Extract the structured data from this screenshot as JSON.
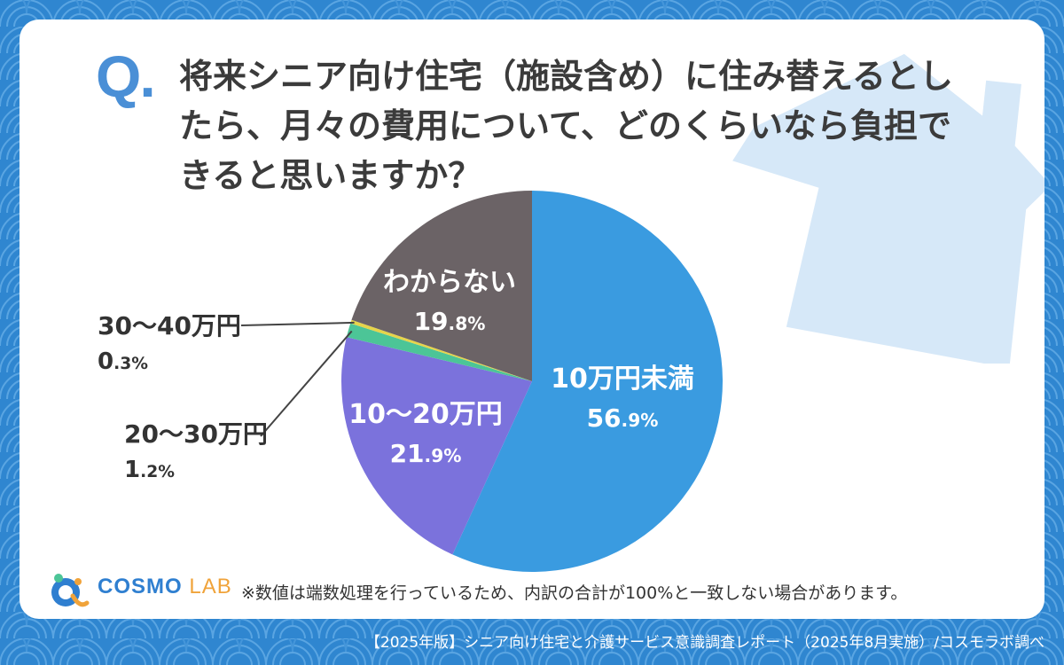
{
  "question": {
    "mark": "Q.",
    "text": "将来シニア向け住宅（施設含め）に住み替えるとしたら、月々の費用について、どのくらいなら負担できると思いますか？"
  },
  "chart_data": {
    "type": "pie",
    "title": "将来シニア向け住宅（施設含め）に住み替えるとしたら、月々の費用について、どのくらいなら負担できると思いますか？",
    "slices": [
      {
        "label": "10万円未満",
        "value": 56.9,
        "pct_int": "56",
        "pct_dec": ".9%",
        "color": "#3a9be0"
      },
      {
        "label": "10〜20万円",
        "value": 21.9,
        "pct_int": "21",
        "pct_dec": ".9%",
        "color": "#7b72dc"
      },
      {
        "label": "20〜30万円",
        "value": 1.2,
        "pct_int": "1",
        "pct_dec": ".2%",
        "color": "#4cc597"
      },
      {
        "label": "30〜40万円",
        "value": 0.3,
        "pct_int": "0",
        "pct_dec": ".3%",
        "color": "#e6d44a"
      },
      {
        "label": "わからない",
        "value": 19.8,
        "pct_int": "19",
        "pct_dec": ".8%",
        "color": "#6b6366"
      }
    ],
    "start": "12 o'clock",
    "direction": "clockwise",
    "legend": "none"
  },
  "note": "※数値は端数処理を行っているため、内訳の合計が100%と一致しない場合があります。",
  "logo": {
    "main": "COSMO ",
    "sub": "LAB"
  },
  "footer": "【2025年版】シニア向け住宅と介護サービス意識調査レポート（2025年8月実施）/コスモラボ調べ",
  "colors": {
    "background": "#2f86d0",
    "card": "#ffffff",
    "house": "#d6e8f8",
    "q_mark": "#4a8fd6"
  }
}
